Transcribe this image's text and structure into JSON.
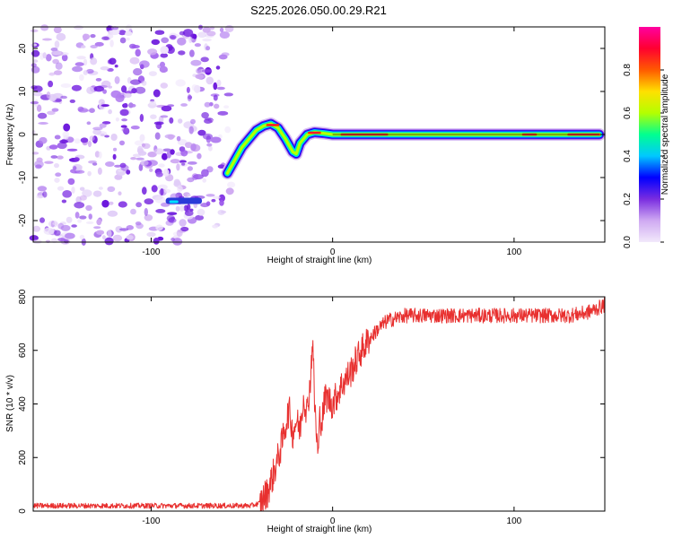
{
  "title": "S225.2026.050.00.29.R21",
  "chart_data": [
    {
      "type": "heatmap",
      "title": "S225.2026.050.00.29.R21",
      "xlabel": "Height of straight line (km)",
      "ylabel": "Frequency (Hz)",
      "xlim": [
        -165,
        150
      ],
      "ylim": [
        -25,
        25
      ],
      "xticks": [
        -100,
        0,
        100
      ],
      "yticks": [
        20,
        10,
        0,
        -10,
        -20
      ],
      "grid": false,
      "noise_region_x": [
        -165,
        -53
      ],
      "ridge": {
        "x": [
          -58,
          -54,
          -50,
          -46,
          -42,
          -38,
          -34,
          -30,
          -26,
          -22,
          -20,
          -18,
          -14,
          -10,
          -5,
          0,
          10,
          20,
          40,
          60,
          80,
          100,
          120,
          147
        ],
        "y": [
          -9,
          -6,
          -3,
          -1,
          1,
          2,
          2.5,
          1.5,
          -1,
          -4,
          -4.5,
          -2,
          0,
          0.5,
          0.3,
          0,
          0,
          0,
          0,
          0,
          0,
          0,
          0,
          0
        ]
      },
      "colorbar": {
        "label": "Normalized spectral amplitude",
        "ticks": [
          "0.0",
          "0.2",
          "0.4",
          "0.6",
          "0.8"
        ],
        "range": [
          0,
          1
        ],
        "colors": [
          "#f2e9fb",
          "#cfa9f2",
          "#7a2de0",
          "#0000ff",
          "#00c8ff",
          "#00ff90",
          "#b4ff00",
          "#ffe000",
          "#ff5a00",
          "#ff0030",
          "#ff00a0"
        ]
      }
    },
    {
      "type": "line",
      "xlabel": "Height of straight line (km)",
      "ylabel": "SNR (10 * v/v)",
      "xlim": [
        -165,
        150
      ],
      "ylim": [
        0,
        800
      ],
      "xticks": [
        -100,
        0,
        100
      ],
      "yticks": [
        800,
        600,
        400,
        200,
        0
      ],
      "color": "#e8302f",
      "grid": false,
      "series": [
        {
          "name": "SNR",
          "x": [
            -165,
            -140,
            -120,
            -100,
            -80,
            -60,
            -45,
            -40,
            -36,
            -33,
            -30,
            -28,
            -26,
            -24,
            -22,
            -20,
            -18,
            -16,
            -14,
            -12,
            -11,
            -10,
            -9,
            -8,
            -7,
            -6,
            -4,
            0,
            5,
            10,
            15,
            20,
            25,
            30,
            35,
            40,
            50,
            60,
            70,
            80,
            90,
            100,
            110,
            120,
            130,
            140,
            147,
            150
          ],
          "y": [
            20,
            20,
            20,
            20,
            20,
            20,
            20,
            30,
            70,
            130,
            200,
            250,
            320,
            380,
            290,
            340,
            300,
            430,
            370,
            510,
            660,
            410,
            300,
            200,
            360,
            330,
            430,
            400,
            470,
            520,
            590,
            640,
            680,
            710,
            720,
            730,
            730,
            730,
            730,
            730,
            730,
            730,
            730,
            730,
            730,
            740,
            760,
            770
          ]
        }
      ]
    }
  ]
}
